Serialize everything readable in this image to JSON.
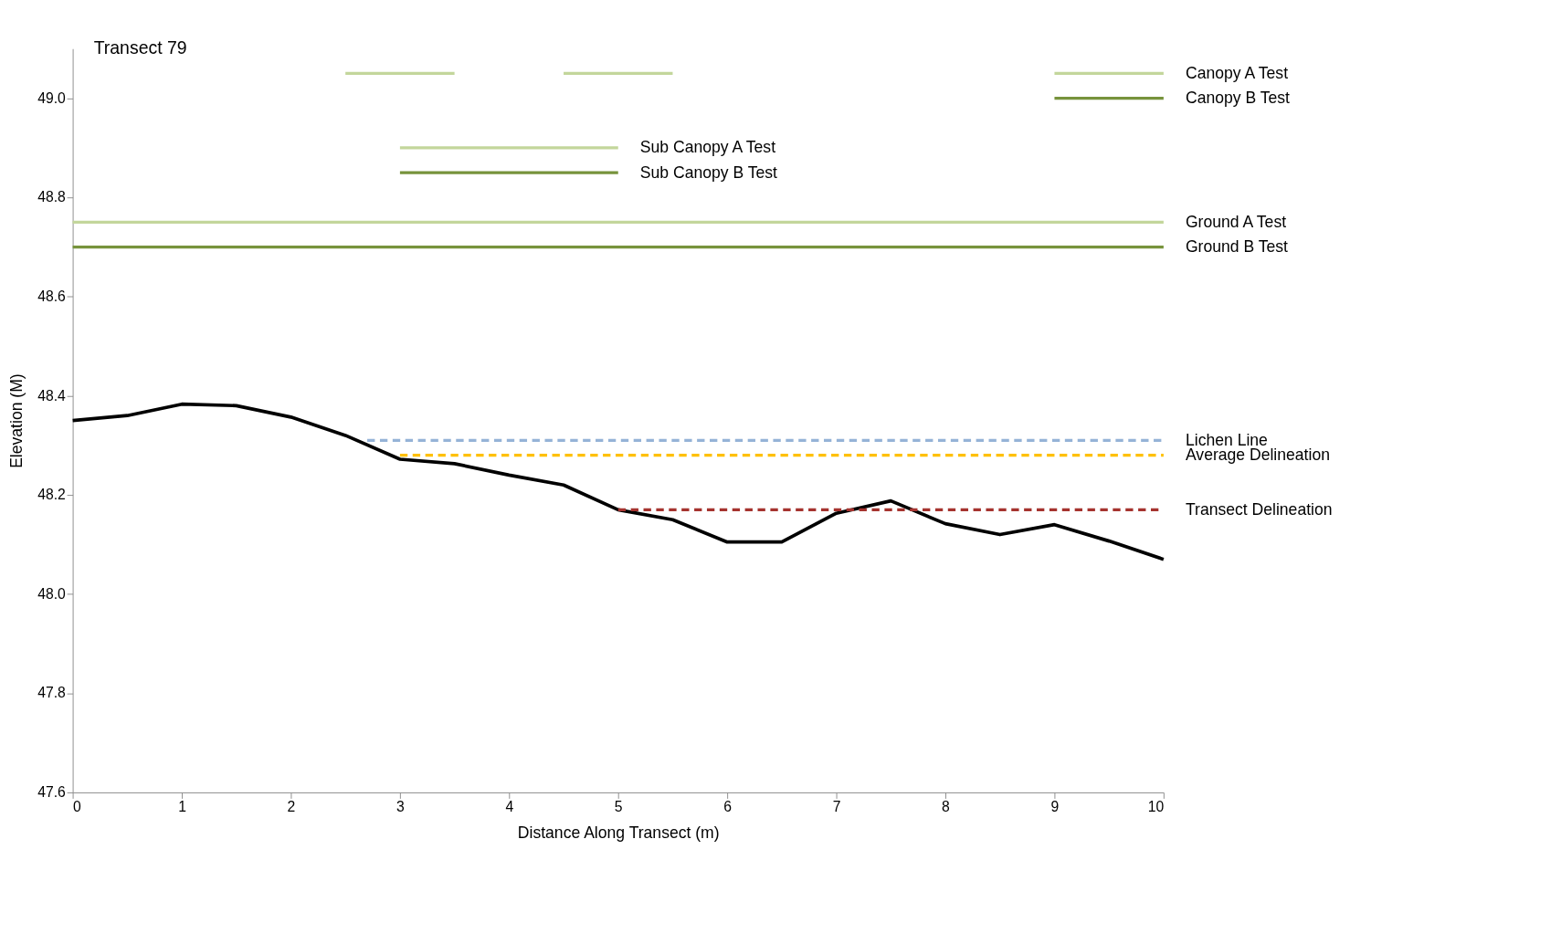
{
  "chart_data": {
    "type": "line",
    "title": "Transect 79",
    "xlabel": "Distance Along Transect (m)",
    "ylabel": "Elevation (M)",
    "xlim": [
      0,
      10
    ],
    "xticks": [
      0,
      1,
      2,
      3,
      4,
      5,
      6,
      7,
      8,
      9,
      10
    ],
    "ylim": [
      47.6,
      49.1
    ],
    "yticks": [
      {
        "value": 47.6,
        "label": "47.6"
      },
      {
        "value": 47.8,
        "label": "47.8"
      },
      {
        "value": 48.0,
        "label": "48.0"
      },
      {
        "value": 48.2,
        "label": "48.2"
      },
      {
        "value": 48.4,
        "label": "48.4"
      },
      {
        "value": 48.6,
        "label": "48.6"
      },
      {
        "value": 48.8,
        "label": "48.8"
      },
      {
        "value": 49.0,
        "label": "49.0"
      }
    ],
    "grid": false,
    "marker": "none",
    "series": [
      {
        "color": "#000000",
        "line_style": "solid",
        "x": [
          0,
          0.5,
          1,
          1.5,
          2,
          2.5,
          3,
          3.5,
          4,
          4.5,
          5,
          5.5,
          6,
          6.5,
          7,
          7.5,
          8,
          8.5,
          9,
          9.5,
          10
        ],
        "values": [
          48.35,
          48.36,
          48.383,
          48.38,
          48.357,
          48.32,
          48.272,
          48.263,
          48.24,
          48.22,
          48.17,
          48.15,
          48.105,
          48.105,
          48.163,
          48.188,
          48.142,
          48.12,
          48.14,
          48.107,
          48.07
        ]
      },
      {
        "name": "Canopy A Test",
        "color": "#c3d69b",
        "line_style": "solid",
        "x": [
          2.5,
          3.5,
          4,
          4.5,
          5.5,
          7,
          9,
          10
        ],
        "values": [
          49.05,
          49.05,
          null,
          49.05,
          49.05,
          null,
          49.05,
          49.05
        ]
      },
      {
        "name": "Canopy B Test",
        "color": "#77933c",
        "line_style": "solid",
        "x": [
          9,
          10
        ],
        "values": [
          49.0,
          49.0
        ]
      },
      {
        "name": "Sub Canopy A Test",
        "color": "#c3d69b",
        "line_style": "solid",
        "x": [
          3,
          5
        ],
        "values": [
          48.9,
          48.9
        ]
      },
      {
        "name": "Sub Canopy B Test",
        "color": "#77933c",
        "line_style": "solid",
        "x": [
          3,
          5
        ],
        "values": [
          48.85,
          48.85
        ]
      },
      {
        "name": "Ground A Test",
        "color": "#c3d69b",
        "line_style": "solid",
        "x": [
          0,
          10
        ],
        "values": [
          48.75,
          48.75
        ]
      },
      {
        "name": "Ground B Test",
        "color": "#77933c",
        "line_style": "solid",
        "x": [
          0,
          10
        ],
        "values": [
          48.7,
          48.7
        ]
      },
      {
        "name": "Lichen Line",
        "color": "#95b3d7",
        "line_style": "dashed",
        "x": [
          2.7,
          10
        ],
        "values": [
          48.31,
          48.31
        ]
      },
      {
        "name": "Average Delineation",
        "color": "#ffc000",
        "line_style": "dashed",
        "x": [
          3,
          10
        ],
        "values": [
          48.28,
          48.28
        ]
      },
      {
        "name": "Transect Delineation",
        "color": "#a5332f",
        "line_style": "dashed",
        "x": [
          5,
          10
        ],
        "values": [
          48.17,
          48.17
        ]
      }
    ]
  }
}
